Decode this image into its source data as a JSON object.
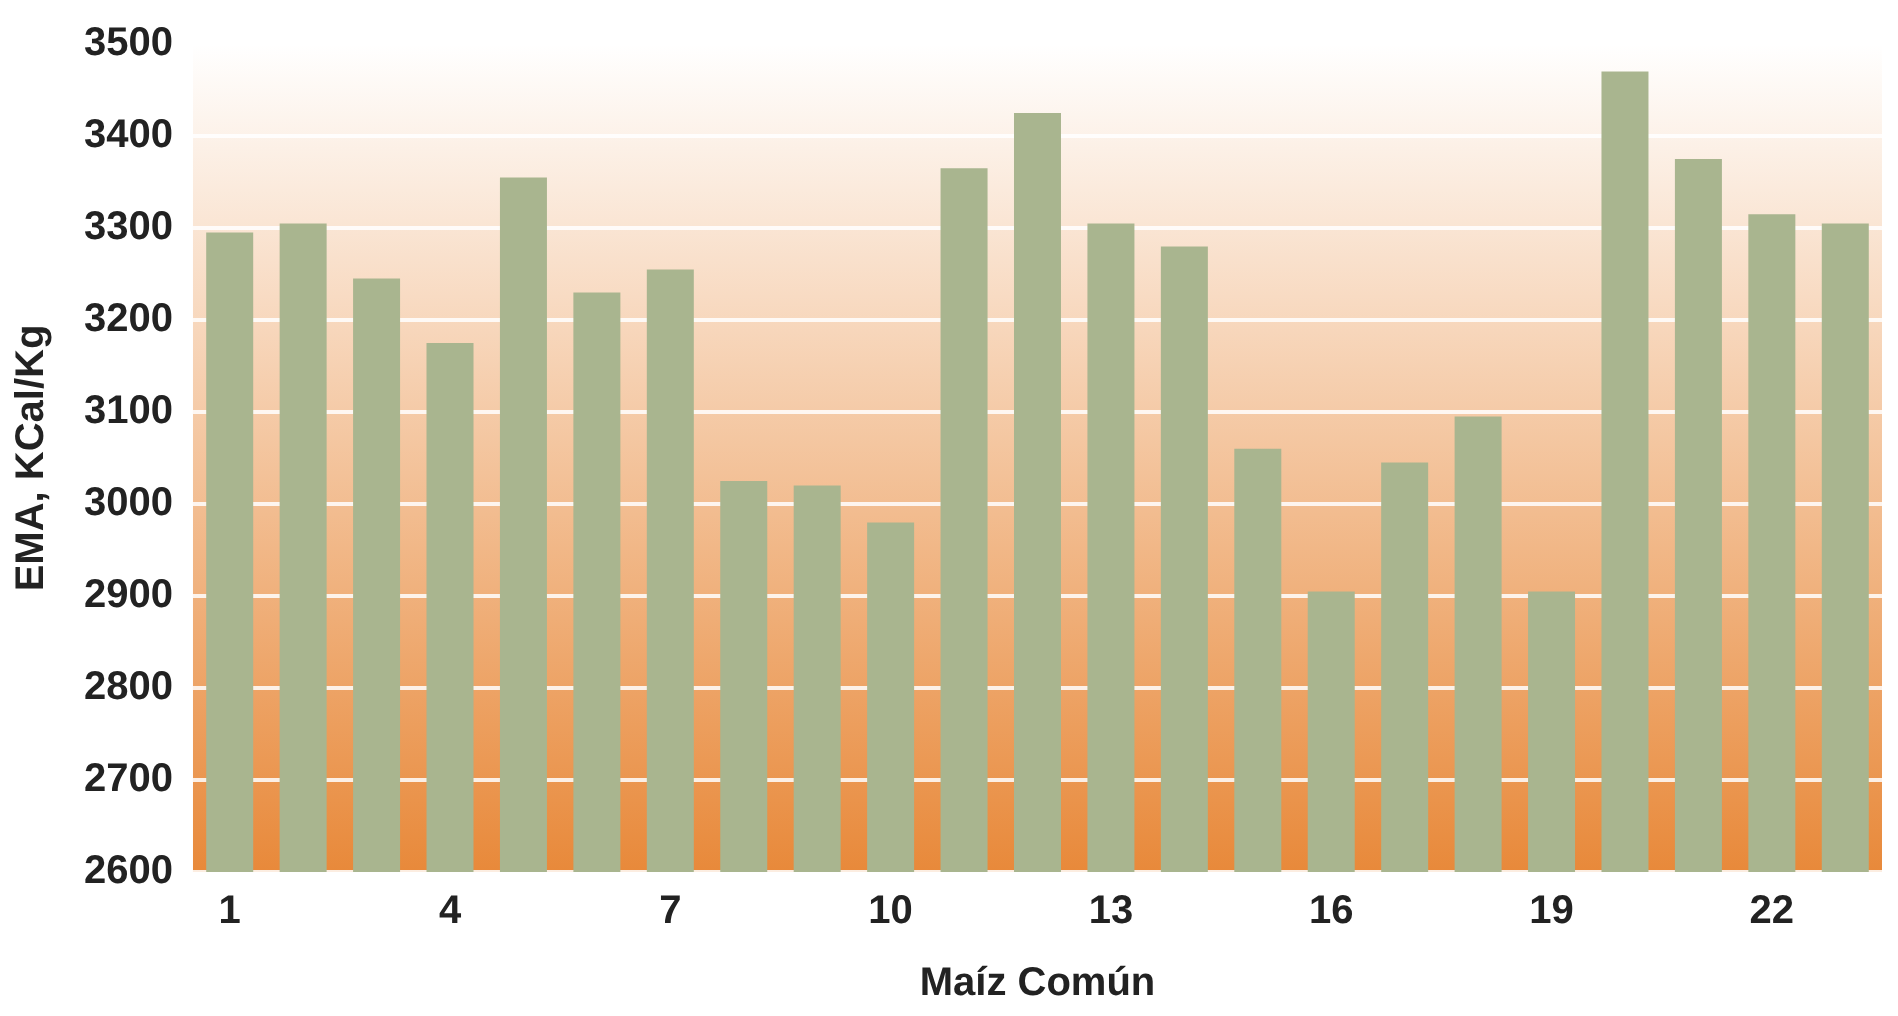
{
  "chart_data": {
    "type": "bar",
    "xlabel": "Maíz Común",
    "ylabel": "EMA, KCal/Kg",
    "categories": [
      "1",
      null,
      null,
      "4",
      null,
      null,
      "7",
      null,
      null,
      "10",
      null,
      null,
      "13",
      null,
      null,
      "16",
      null,
      null,
      "19",
      null,
      null,
      "22",
      null
    ],
    "values": [
      3295,
      3305,
      3245,
      3175,
      3355,
      3230,
      3255,
      3025,
      3020,
      2980,
      3365,
      3425,
      3305,
      3280,
      3060,
      2905,
      3045,
      3095,
      2905,
      3470,
      3375,
      3315,
      3305
    ],
    "color": "#a9b58f",
    "ylim": [
      2600,
      3500
    ],
    "yticks": [
      2600,
      2700,
      2800,
      2900,
      3000,
      3100,
      3200,
      3300,
      3400,
      3500
    ],
    "grid": "y",
    "legend": false
  }
}
